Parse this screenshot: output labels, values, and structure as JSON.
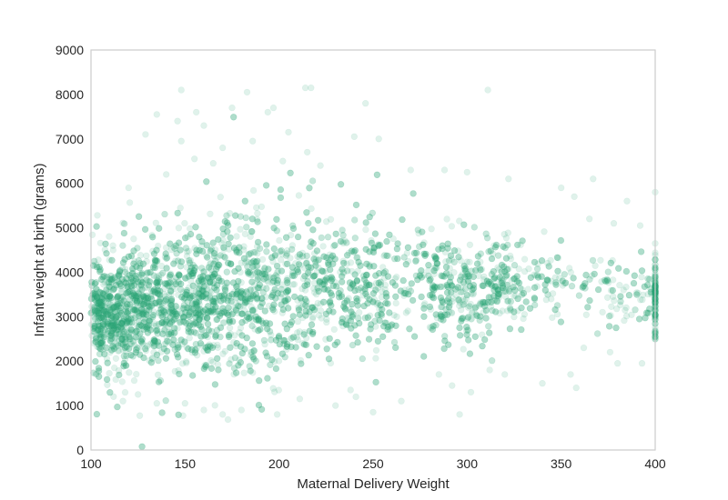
{
  "chart_data": {
    "type": "scatter",
    "title": "",
    "xlabel": "Maternal Delivery Weight",
    "ylabel": "Infant weight at birth (grams)",
    "xlim": [
      100,
      400
    ],
    "ylim": [
      0,
      9000
    ],
    "xticks": [
      "100",
      "150",
      "200",
      "250",
      "300",
      "350",
      "400"
    ],
    "yticks": [
      "0",
      "1000",
      "2000",
      "3000",
      "4000",
      "5000",
      "6000",
      "7000",
      "8000",
      "9000"
    ],
    "grid": false,
    "legend": "none",
    "point_color": "#2ca87a",
    "point_opacity": 0.15,
    "dense_band": [
      {
        "x": 100,
        "low": 2000,
        "high": 4000
      },
      {
        "x": 125,
        "low": 1950,
        "high": 4500
      },
      {
        "x": 150,
        "low": 1950,
        "high": 4800
      },
      {
        "x": 175,
        "low": 1950,
        "high": 5000
      },
      {
        "x": 200,
        "low": 2000,
        "high": 5050
      },
      {
        "x": 225,
        "low": 2200,
        "high": 5050
      },
      {
        "x": 250,
        "low": 2350,
        "high": 4950
      },
      {
        "x": 275,
        "low": 2550,
        "high": 4850
      },
      {
        "x": 300,
        "low": 2700,
        "high": 4700
      },
      {
        "x": 325,
        "low": 2900,
        "high": 4500
      },
      {
        "x": 350,
        "low": 3000,
        "high": 4300
      },
      {
        "x": 375,
        "low": 2900,
        "high": 4200
      },
      {
        "x": 400,
        "low": 2700,
        "high": 4300
      }
    ],
    "outliers": [
      {
        "x": 148,
        "y": 8100
      },
      {
        "x": 183,
        "y": 8050
      },
      {
        "x": 214,
        "y": 8150
      },
      {
        "x": 217,
        "y": 8150
      },
      {
        "x": 311,
        "y": 8100
      },
      {
        "x": 135,
        "y": 7550
      },
      {
        "x": 146,
        "y": 7400
      },
      {
        "x": 156,
        "y": 7600
      },
      {
        "x": 175,
        "y": 7700
      },
      {
        "x": 194,
        "y": 7600
      },
      {
        "x": 197,
        "y": 7700
      },
      {
        "x": 246,
        "y": 7800
      },
      {
        "x": 129,
        "y": 7100
      },
      {
        "x": 160,
        "y": 7300
      },
      {
        "x": 205,
        "y": 7150
      },
      {
        "x": 240,
        "y": 7050
      },
      {
        "x": 253,
        "y": 7000
      },
      {
        "x": 148,
        "y": 6950
      },
      {
        "x": 170,
        "y": 6800
      },
      {
        "x": 186,
        "y": 6950
      },
      {
        "x": 215,
        "y": 6700
      },
      {
        "x": 155,
        "y": 6550
      },
      {
        "x": 165,
        "y": 6450
      },
      {
        "x": 202,
        "y": 6500
      },
      {
        "x": 222,
        "y": 6400
      },
      {
        "x": 270,
        "y": 6300
      },
      {
        "x": 288,
        "y": 6300
      },
      {
        "x": 300,
        "y": 6250
      },
      {
        "x": 322,
        "y": 6100
      },
      {
        "x": 367,
        "y": 6100
      },
      {
        "x": 140,
        "y": 6200
      },
      {
        "x": 120,
        "y": 5900
      },
      {
        "x": 350,
        "y": 5900
      },
      {
        "x": 357,
        "y": 5700
      },
      {
        "x": 385,
        "y": 5600
      },
      {
        "x": 400,
        "y": 5800
      },
      {
        "x": 365,
        "y": 5200
      },
      {
        "x": 378,
        "y": 5100
      },
      {
        "x": 392,
        "y": 5050
      },
      {
        "x": 362,
        "y": 2300
      },
      {
        "x": 376,
        "y": 2200
      },
      {
        "x": 380,
        "y": 1950
      },
      {
        "x": 393,
        "y": 1950
      },
      {
        "x": 355,
        "y": 1700
      },
      {
        "x": 358,
        "y": 1400
      },
      {
        "x": 340,
        "y": 1500
      },
      {
        "x": 312,
        "y": 1800
      },
      {
        "x": 320,
        "y": 1700
      },
      {
        "x": 302,
        "y": 1300
      },
      {
        "x": 292,
        "y": 1450
      },
      {
        "x": 296,
        "y": 800
      },
      {
        "x": 285,
        "y": 1700
      },
      {
        "x": 250,
        "y": 850
      },
      {
        "x": 211,
        "y": 1150
      },
      {
        "x": 180,
        "y": 900
      },
      {
        "x": 170,
        "y": 800
      },
      {
        "x": 160,
        "y": 900
      },
      {
        "x": 150,
        "y": 1050
      },
      {
        "x": 135,
        "y": 1050
      },
      {
        "x": 125,
        "y": 1250
      },
      {
        "x": 117,
        "y": 1100
      },
      {
        "x": 112,
        "y": 1200
      },
      {
        "x": 199,
        "y": 800
      },
      {
        "x": 230,
        "y": 1000
      },
      {
        "x": 265,
        "y": 1100
      },
      {
        "x": 238,
        "y": 1350
      },
      {
        "x": 372,
        "y": 3100
      },
      {
        "x": 398,
        "y": 3500
      }
    ]
  }
}
